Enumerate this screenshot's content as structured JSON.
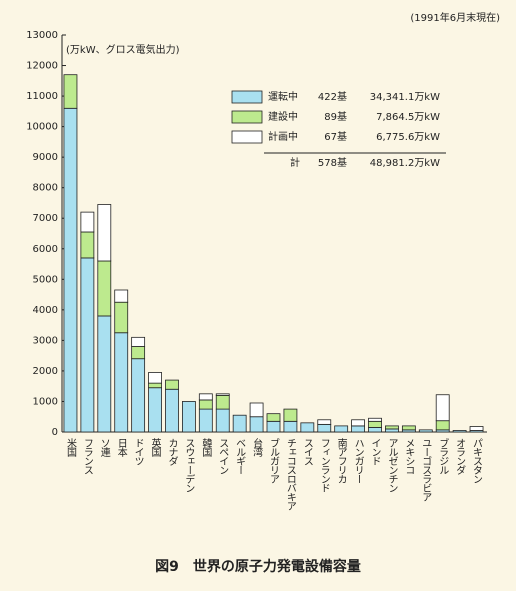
{
  "chart_data": {
    "type": "stacked-bar",
    "date_note": "(1991年6月末現在)",
    "unit_note": "(万kW、グロス電気出力)",
    "caption": "図9　世界の原子力発電設備容量",
    "categories": [
      "米国",
      "フランス",
      "ソ連",
      "日本",
      "ドイツ",
      "英国",
      "カナダ",
      "スウェーデン",
      "韓国",
      "スペイン",
      "ベルギー",
      "台湾",
      "ブルガリア",
      "チェコスロバキア",
      "スイス",
      "フィンランド",
      "南アフリカ",
      "ハンガリー",
      "インド",
      "アルゼンチン",
      "メキシコ",
      "ユーゴスラビア",
      "ブラジル",
      "オランダ",
      "パキスタン"
    ],
    "series": [
      {
        "name": "運転中",
        "color": "#a9e0f0",
        "values": [
          10600,
          5700,
          3800,
          3250,
          2400,
          1450,
          1400,
          1000,
          750,
          750,
          550,
          500,
          350,
          350,
          300,
          250,
          200,
          200,
          150,
          100,
          70,
          70,
          70,
          50,
          50
        ]
      },
      {
        "name": "建設中",
        "color": "#bdea8e",
        "values": [
          1100,
          850,
          1800,
          1000,
          400,
          150,
          300,
          0,
          300,
          450,
          0,
          0,
          250,
          400,
          0,
          0,
          0,
          0,
          200,
          100,
          130,
          0,
          300,
          0,
          0
        ]
      },
      {
        "name": "計画中",
        "color": "#ffffff",
        "values": [
          0,
          650,
          1850,
          400,
          300,
          350,
          0,
          0,
          200,
          50,
          0,
          450,
          0,
          0,
          0,
          150,
          0,
          200,
          100,
          0,
          0,
          0,
          850,
          0,
          130
        ]
      }
    ],
    "legend_table": {
      "units": [
        "422基",
        "89基",
        "67基"
      ],
      "capacity": [
        "34,341.1万kW",
        "7,864.5万kW",
        "6,775.6万kW"
      ],
      "total_label": "計",
      "total_units": "578基",
      "total_capacity": "48,981.2万kW"
    },
    "ylim": [
      0,
      13000
    ],
    "yticks": [
      0,
      1000,
      2000,
      3000,
      4000,
      5000,
      6000,
      7000,
      8000,
      9000,
      10000,
      11000,
      12000,
      13000
    ]
  }
}
